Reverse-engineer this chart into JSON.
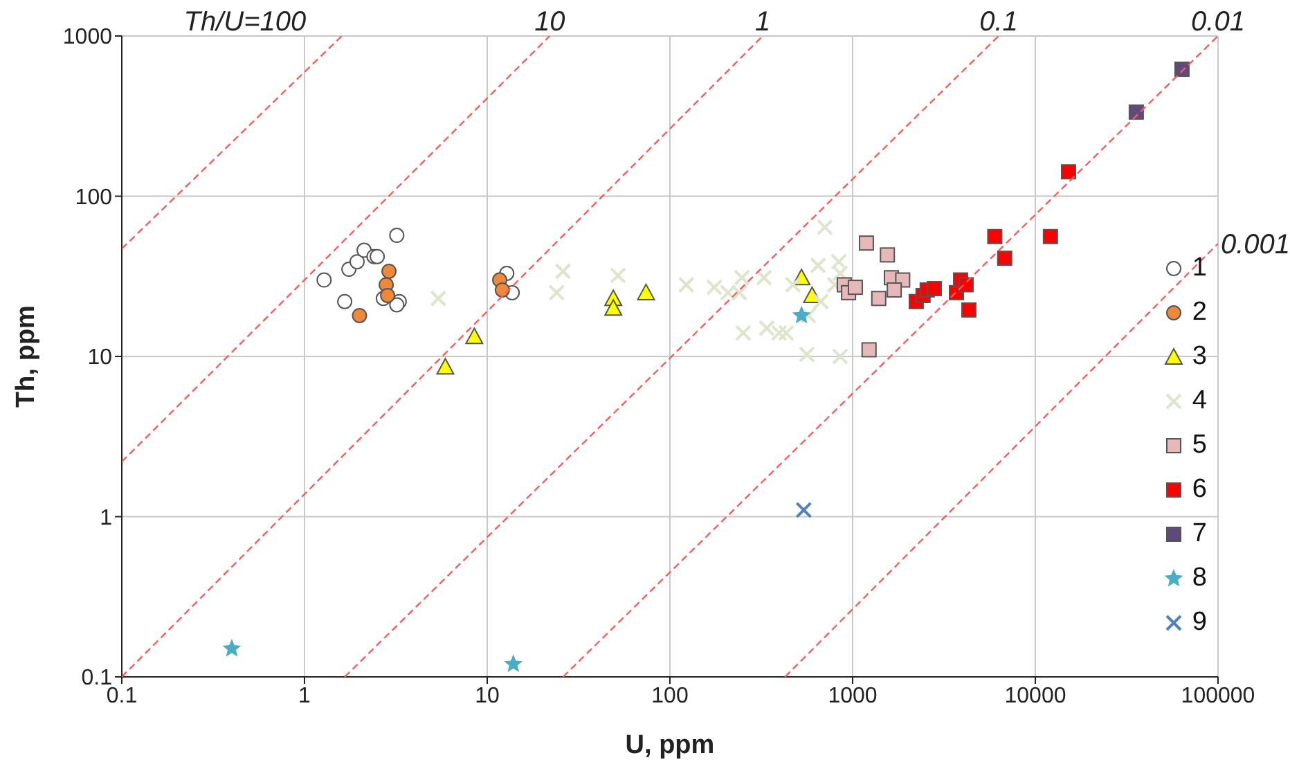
{
  "chart_data": {
    "type": "scatter",
    "xlabel": "U, ppm",
    "ylabel": "Th, ppm",
    "log": "xy",
    "grid": true,
    "legend": "right",
    "xlim": [
      0.1,
      100000
    ],
    "xticks": [
      0.1,
      1,
      10,
      100,
      1000,
      10000,
      100000
    ],
    "ylim": [
      0.1,
      1000
    ],
    "yticks": [
      0.1,
      1,
      10,
      100,
      1000
    ],
    "annotations": [
      "Th/U=100",
      "10",
      "1",
      "0.1",
      "0.01",
      "0.001"
    ],
    "series": [
      {
        "name": "1",
        "color": "#ffffff",
        "marker": "circle",
        "x": [
          1.28,
          1.66,
          1.75,
          1.94,
          2.12,
          2.4,
          2.5,
          3.2,
          2.7,
          3.3,
          3.2,
          12.8,
          13.7
        ],
        "values": [
          30,
          22,
          35,
          39,
          46,
          42,
          42,
          57,
          23,
          22,
          21,
          33,
          25
        ]
      },
      {
        "name": "2",
        "color": "#f0883a",
        "marker": "circle",
        "x": [
          2.0,
          2.9,
          2.8,
          2.85,
          11.7,
          12.1
        ],
        "values": [
          18,
          34,
          28,
          24,
          30,
          26
        ]
      },
      {
        "name": "3",
        "color": "#ffff00",
        "marker": "triangle",
        "x": [
          8.5,
          5.9,
          49,
          49,
          74,
          525,
          600
        ],
        "values": [
          13.3,
          8.6,
          23,
          20,
          25,
          31,
          24
        ]
      },
      {
        "name": "4",
        "color": "#dde5cc",
        "marker": "cross",
        "x": [
          5.4,
          26,
          24,
          52,
          123,
          175,
          208,
          240,
          248,
          327,
          472,
          705,
          647,
          840,
          855,
          798,
          670,
          572,
          252,
          339,
          396,
          433,
          562,
          855
        ],
        "values": [
          23,
          34,
          25,
          32,
          28,
          27,
          25,
          25,
          31,
          31,
          28,
          64,
          37,
          39,
          33,
          28,
          22,
          18,
          14,
          15,
          14,
          14,
          10.3,
          10
        ]
      },
      {
        "name": "5",
        "color": "#e6b8b7",
        "marker": "square",
        "x": [
          1190,
          1550,
          900,
          950,
          1035,
          1390,
          1630,
          1880,
          1690,
          1230
        ],
        "values": [
          51,
          43,
          28,
          25,
          27,
          23,
          31,
          30,
          26,
          11
        ]
      },
      {
        "name": "6",
        "color": "#ff0000",
        "marker": "square",
        "x": [
          6000,
          6800,
          12100,
          15200,
          2230,
          2430,
          2560,
          2800,
          3700,
          3900,
          4180,
          4330
        ],
        "values": [
          56,
          41,
          56,
          142,
          22,
          24,
          26,
          26.5,
          25,
          30,
          28,
          19.5
        ]
      },
      {
        "name": "7",
        "color": "#604a7b",
        "marker": "square",
        "x": [
          63500,
          35700
        ],
        "values": [
          620,
          335
        ]
      },
      {
        "name": "8",
        "color": "#4bacc6",
        "marker": "star",
        "x": [
          0.4,
          13.9,
          525
        ],
        "values": [
          0.15,
          0.12,
          18
        ]
      },
      {
        "name": "9",
        "color": "#4f81bd",
        "marker": "cross",
        "x": [
          540
        ],
        "values": [
          1.1
        ]
      },
      {
        "type": "line",
        "color": "#ff5a5a",
        "line_style": "dashed",
        "marker": "none",
        "x": [
          0.1,
          1.6
        ],
        "values": [
          47,
          1000
        ]
      },
      {
        "type": "line",
        "color": "#ff5a5a",
        "line_style": "dashed",
        "marker": "none",
        "x": [
          0.1,
          22
        ],
        "values": [
          2.2,
          1000
        ]
      },
      {
        "type": "line",
        "color": "#ff5a5a",
        "line_style": "dashed",
        "marker": "none",
        "x": [
          0.1,
          322
        ],
        "values": [
          0.1,
          1000
        ]
      },
      {
        "type": "line",
        "color": "#ff5a5a",
        "line_style": "dashed",
        "marker": "none",
        "x": [
          1.66,
          6300
        ],
        "values": [
          0.1,
          1000
        ]
      },
      {
        "type": "line",
        "color": "#ff5a5a",
        "line_style": "dashed",
        "marker": "none",
        "x": [
          26,
          100000
        ],
        "values": [
          0.1,
          1000
        ]
      },
      {
        "type": "line",
        "color": "#ff5a5a",
        "line_style": "dashed",
        "marker": "none",
        "x": [
          427,
          100000
        ],
        "values": [
          0.1,
          50.6
        ]
      }
    ]
  }
}
